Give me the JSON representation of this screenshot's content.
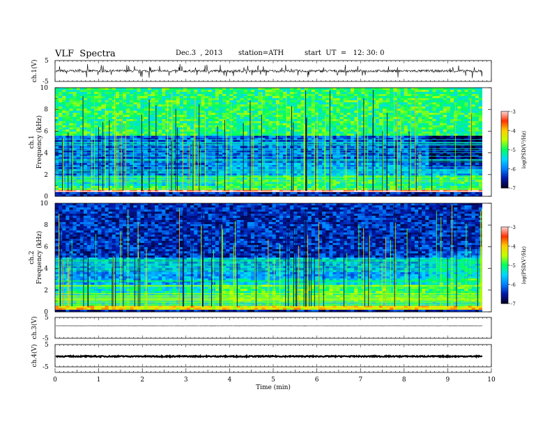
{
  "header": {
    "title": "VLF  Spectra",
    "date": "Dec.3  , 2013",
    "station": "station=ATH",
    "start": "start  UT  =   12: 30: 0"
  },
  "colors": {
    "colormap": [
      "#000020",
      "#0018a8",
      "#0080ff",
      "#00d8ff",
      "#00ff60",
      "#c0ff00",
      "#ffd000",
      "#ff3000",
      "#ffd8d8"
    ],
    "trace": "#000000"
  },
  "chart_data": [
    {
      "type": "line",
      "panel": "ch1",
      "ylabel": "ch.1(V)",
      "ylim": [
        -5,
        5
      ],
      "yticks": [
        "5",
        "-5"
      ],
      "xlim": [
        0,
        10
      ],
      "baseline": 0,
      "noise_amplitude": 0.6
    },
    {
      "type": "heatmap",
      "panel": "ch1-spectrogram",
      "ylabel": [
        "ch.1",
        "Frequency  (kHz)"
      ],
      "ylim": [
        0,
        10
      ],
      "yticks": [
        "0",
        "2",
        "4",
        "6",
        "8",
        "10"
      ],
      "xlim": [
        0,
        9.8
      ],
      "colorbar": {
        "label": "log(PSD(V²/Hz)",
        "range": [
          -7,
          -3
        ],
        "ticks": [
          "-3",
          "-4",
          "-5",
          "-6",
          "-7"
        ]
      },
      "bands": [
        {
          "f": [
            0.3,
            0.55
          ],
          "log_psd": -3.3
        },
        {
          "f": [
            0.55,
            1.0
          ],
          "log_psd": -5.0
        },
        {
          "f": [
            1.0,
            2.0
          ],
          "log_psd": -5.4
        },
        {
          "f": [
            2.0,
            5.5
          ],
          "log_psd": -6.1
        },
        {
          "f": [
            5.5,
            10.0
          ],
          "log_psd": -5.0
        }
      ]
    },
    {
      "type": "heatmap",
      "panel": "ch2-spectrogram",
      "ylabel": [
        "ch.2",
        "Frequency  (kHz)"
      ],
      "ylim": [
        0,
        10
      ],
      "yticks": [
        "0",
        "2",
        "4",
        "6",
        "8",
        "10"
      ],
      "xlim": [
        0,
        9.8
      ],
      "colorbar": {
        "label": "log(PSD(V²/Hz)",
        "range": [
          -7,
          -3
        ],
        "ticks": [
          "-3",
          "-4",
          "-5",
          "-6",
          "-7"
        ]
      },
      "bands": [
        {
          "f": [
            0.2,
            0.6
          ],
          "log_psd": -4.2
        },
        {
          "f": [
            0.6,
            2.5
          ],
          "log_psd": -5.3
        },
        {
          "f": [
            2.5,
            5.0
          ],
          "log_psd": -5.8
        },
        {
          "f": [
            5.0,
            10.0
          ],
          "log_psd": -6.4
        }
      ]
    },
    {
      "type": "line",
      "panel": "ch3",
      "ylabel": "ch.3(V)",
      "ylim": [
        -5,
        5
      ],
      "yticks": [
        "5",
        "-5"
      ],
      "xlim": [
        0,
        10
      ],
      "baseline": 1,
      "noise_amplitude": 0.05
    },
    {
      "type": "line",
      "panel": "ch4",
      "ylabel": "ch.4(V)",
      "ylim": [
        -5,
        5
      ],
      "yticks": [
        "5",
        "-5"
      ],
      "xlim": [
        0,
        10
      ],
      "baseline": -0.3,
      "noise_amplitude": 0.25
    }
  ],
  "xaxis": {
    "label": "Time  (min)",
    "ticks": [
      "0",
      "1",
      "2",
      "3",
      "4",
      "5",
      "6",
      "7",
      "8",
      "9",
      "10"
    ],
    "range": [
      0,
      10
    ]
  }
}
